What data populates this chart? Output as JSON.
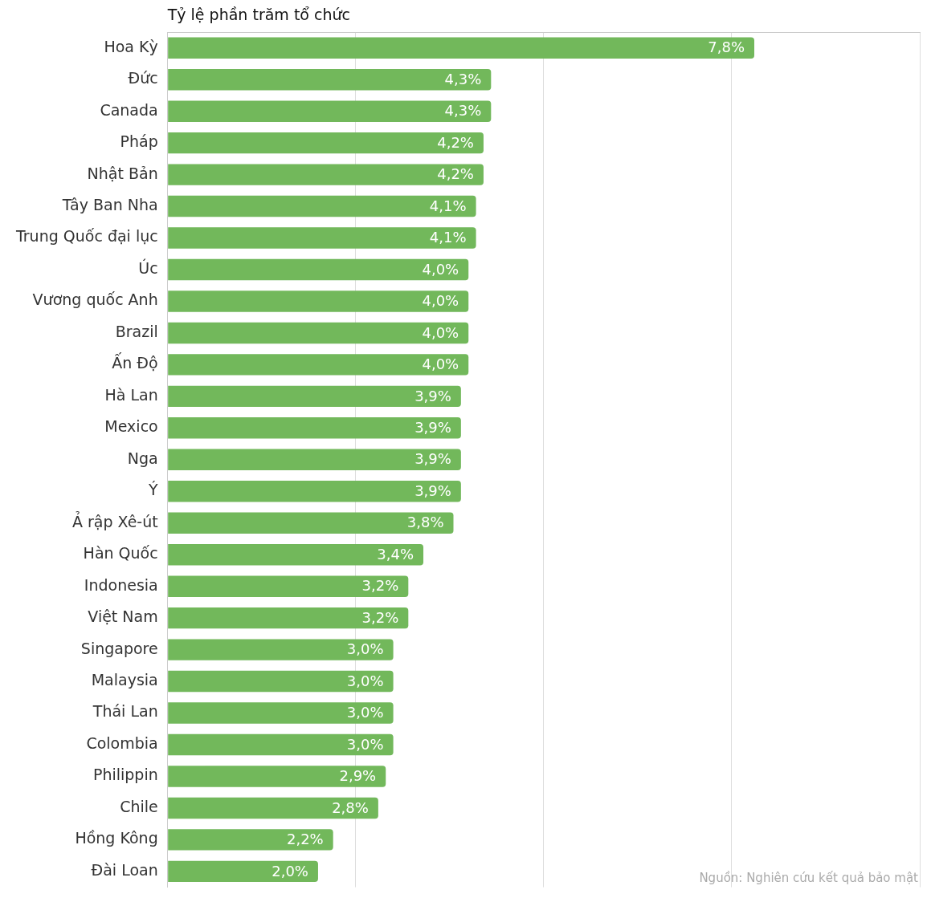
{
  "chart_data": {
    "type": "bar",
    "orientation": "horizontal",
    "title": "Tỷ lệ phần trăm tổ chức",
    "categories": [
      "Hoa Kỳ",
      "Đức",
      "Canada",
      "Pháp",
      "Nhật Bản",
      "Tây Ban Nha",
      "Trung Quốc đại lục",
      "Úc",
      "Vương quốc Anh",
      "Brazil",
      "Ấn Độ",
      "Hà Lan",
      "Mexico",
      "Nga",
      "Ý",
      "Ả rập Xê-út",
      "Hàn Quốc",
      "Indonesia",
      "Việt Nam",
      "Singapore",
      "Malaysia",
      "Thái Lan",
      "Colombia",
      "Philippin",
      "Chile",
      "Hồng Kông",
      "Đài Loan"
    ],
    "values": [
      7.8,
      4.3,
      4.3,
      4.2,
      4.2,
      4.1,
      4.1,
      4.0,
      4.0,
      4.0,
      4.0,
      3.9,
      3.9,
      3.9,
      3.9,
      3.8,
      3.4,
      3.2,
      3.2,
      3.0,
      3.0,
      3.0,
      3.0,
      2.9,
      2.8,
      2.2,
      2.0
    ],
    "value_labels": [
      "7,8%",
      "4,3%",
      "4,3%",
      "4,2%",
      "4,2%",
      "4,1%",
      "4,1%",
      "4,0%",
      "4,0%",
      "4,0%",
      "4,0%",
      "3,9%",
      "3,9%",
      "3,9%",
      "3,9%",
      "3,8%",
      "3,4%",
      "3,2%",
      "3,2%",
      "3,0%",
      "3,0%",
      "3,0%",
      "3,0%",
      "2,9%",
      "2,8%",
      "2,2%",
      "2,0%"
    ],
    "color": "#72b85b",
    "xlim": [
      0,
      10
    ],
    "xticks": [
      {
        "value": 0,
        "label": null
      },
      {
        "value": 2.5,
        "label": null
      },
      {
        "value": 5,
        "label": null
      },
      {
        "value": 7.5,
        "label": null
      },
      {
        "value": 10,
        "label": null
      }
    ],
    "grid": "x",
    "tick_labels": "y",
    "annotations": [
      "Nguồn: Nghiên cứu kết quả bảo mật"
    ]
  }
}
